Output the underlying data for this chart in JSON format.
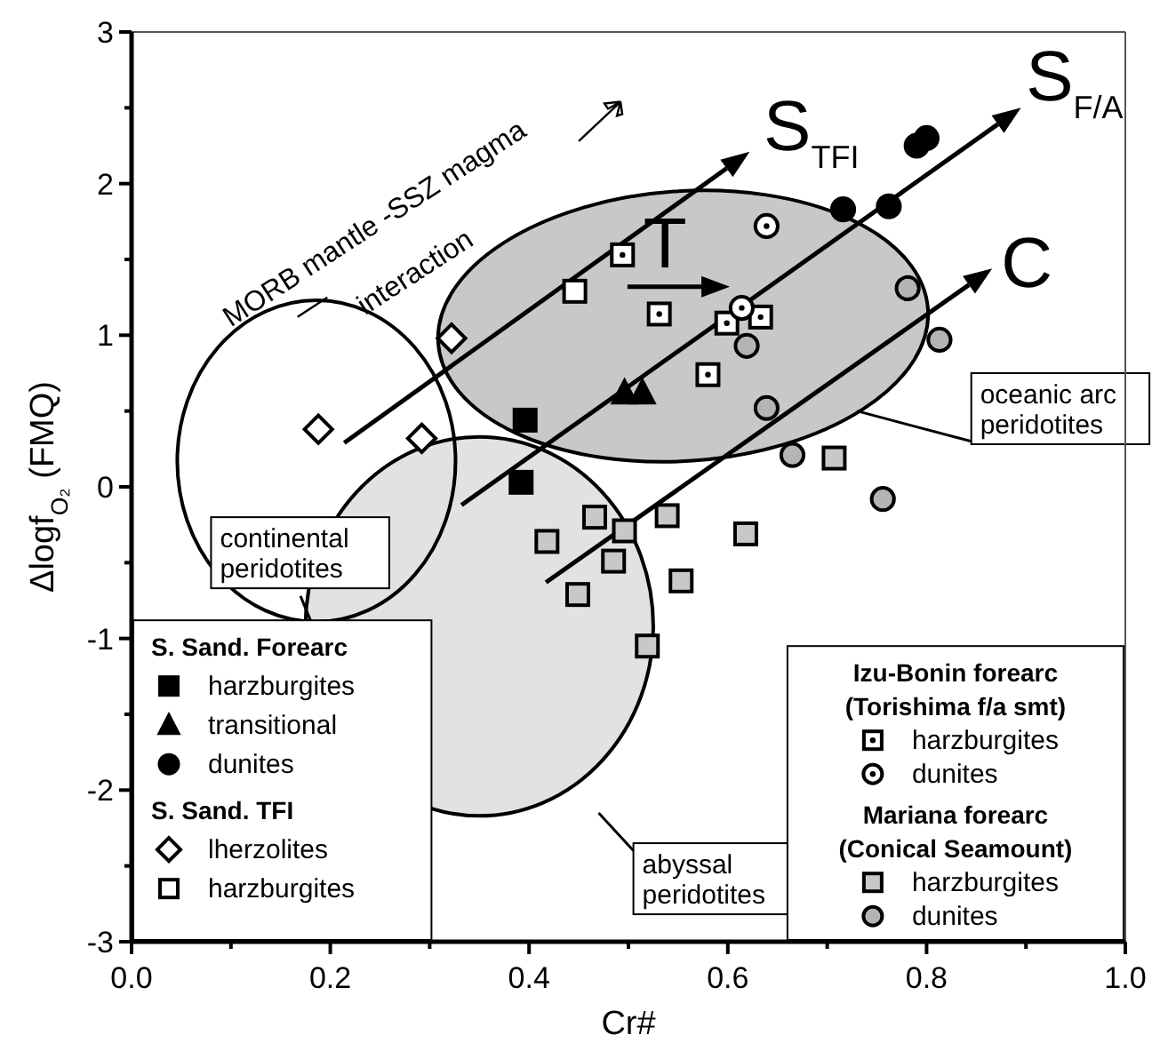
{
  "chart_data": {
    "type": "scatter",
    "xlabel": "Cr#",
    "ylabel": "Δlogf$_{O₂}$ (FMQ)",
    "xlim": [
      0,
      1
    ],
    "ylim": [
      -3,
      3
    ],
    "xticks": [
      {
        "value": 0,
        "label": "0.0"
      },
      {
        "value": 0.1,
        "label": null
      },
      {
        "value": 0.2,
        "label": "0.2"
      },
      {
        "value": 0.3,
        "label": null
      },
      {
        "value": 0.4,
        "label": "0.4"
      },
      {
        "value": 0.5,
        "label": null
      },
      {
        "value": 0.6,
        "label": "0.6"
      },
      {
        "value": 0.7,
        "label": null
      },
      {
        "value": 0.8,
        "label": "0.8"
      },
      {
        "value": 0.9,
        "label": null
      },
      {
        "value": 1,
        "label": "1.0"
      }
    ],
    "yticks": [
      -3,
      {
        "value": -2.5,
        "label": null
      },
      -2,
      {
        "value": -1.5,
        "label": null
      },
      -1,
      {
        "value": -0.5,
        "label": null
      },
      0,
      {
        "value": 0.5,
        "label": null
      },
      1,
      {
        "value": 1.5,
        "label": null
      },
      2,
      {
        "value": 2.5,
        "label": null
      },
      3
    ],
    "grid": false,
    "legend": "bottom",
    "series": [
      {
        "name": "harzburgites",
        "color": "#000000",
        "marker": "square",
        "x": [
          0.396,
          0.392
        ],
        "values": [
          0.44,
          0.03
        ]
      },
      {
        "name": "transitional",
        "color": "#000000",
        "marker": "triangle",
        "x": [
          0.496,
          0.514
        ],
        "values": [
          0.62,
          0.62
        ]
      },
      {
        "name": "dunites",
        "color": "#000000",
        "marker": "circle",
        "x": [
          0.79,
          0.8,
          0.716,
          0.762
        ],
        "values": [
          2.25,
          2.3,
          1.83,
          1.85
        ]
      },
      {
        "name": "lherzolites",
        "color": "#ffffff",
        "marker": "diamond",
        "x": [
          0.188,
          0.292,
          0.322
        ],
        "values": [
          0.38,
          0.32,
          0.98
        ]
      },
      {
        "name": "harzburgites",
        "color": "#ffffff",
        "marker": "square",
        "x": [
          0.446
        ],
        "values": [
          1.29
        ]
      },
      {
        "name": "harzburgites",
        "color": "#ffffff",
        "marker": "square",
        "x": [
          0.494,
          0.531,
          0.599,
          0.633,
          0.58
        ],
        "values": [
          1.53,
          1.14,
          1.08,
          1.12,
          0.74
        ]
      },
      {
        "name": "dunites",
        "color": "#ffffff",
        "marker": "circle",
        "x": [
          0.639,
          0.614
        ],
        "values": [
          1.72,
          1.18
        ]
      },
      {
        "name": "harzburgites",
        "color": "#c8c8c8",
        "marker": "square",
        "x": [
          0.418,
          0.449,
          0.466,
          0.485,
          0.496,
          0.519,
          0.539,
          0.553,
          0.618,
          0.707
        ],
        "values": [
          -0.36,
          -0.71,
          -0.2,
          -0.49,
          -0.29,
          -1.05,
          -0.19,
          -0.62,
          -0.31,
          0.19
        ]
      },
      {
        "name": "dunites",
        "color": "#b4b4b4",
        "marker": "circle",
        "x": [
          0.781,
          0.813,
          0.619,
          0.639,
          0.665,
          0.756
        ],
        "values": [
          1.31,
          0.97,
          0.93,
          0.52,
          0.21,
          -0.08
        ]
      }
    ],
    "annotations": [
      "MORB mantle -SSZ magma interaction",
      "S$_{TFI}$",
      "S$_{F/A}$",
      "C",
      "T",
      "continental peridotites",
      "oceanic arc peridotites",
      "abyssal peridotites",
      "S. Sand. Forearc",
      "S. Sand. TFI",
      "Izu-Bonin forearc (Torishima f/a smt)",
      "Mariana forearc (Conical Seamount)"
    ]
  }
}
